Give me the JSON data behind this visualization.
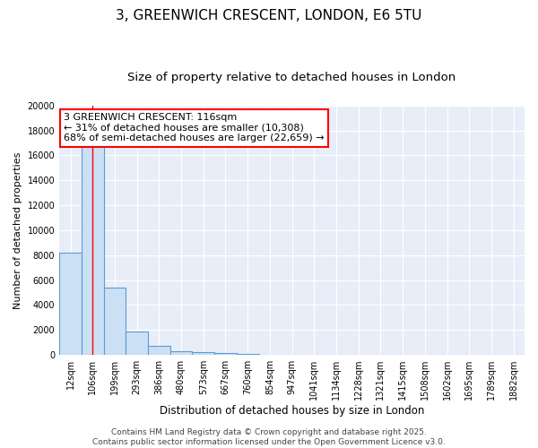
{
  "title_line1": "3, GREENWICH CRESCENT, LONDON, E6 5TU",
  "title_line2": "Size of property relative to detached houses in London",
  "xlabel": "Distribution of detached houses by size in London",
  "ylabel": "Number of detached properties",
  "bar_color": "#cce0f5",
  "bar_edge_color": "#5b9bd5",
  "bar_edge_width": 0.8,
  "vline_color": "red",
  "vline_x": 1.0,
  "categories": [
    "12sqm",
    "106sqm",
    "199sqm",
    "293sqm",
    "386sqm",
    "480sqm",
    "573sqm",
    "667sqm",
    "760sqm",
    "854sqm",
    "947sqm",
    "1041sqm",
    "1134sqm",
    "1228sqm",
    "1321sqm",
    "1415sqm",
    "1508sqm",
    "1602sqm",
    "1695sqm",
    "1789sqm",
    "1882sqm"
  ],
  "values": [
    8200,
    16700,
    5400,
    1850,
    750,
    300,
    200,
    150,
    100,
    0,
    0,
    0,
    0,
    0,
    0,
    0,
    0,
    0,
    0,
    0,
    0
  ],
  "ylim": [
    0,
    20000
  ],
  "yticks": [
    0,
    2000,
    4000,
    6000,
    8000,
    10000,
    12000,
    14000,
    16000,
    18000,
    20000
  ],
  "annotation_text": "3 GREENWICH CRESCENT: 116sqm\n← 31% of detached houses are smaller (10,308)\n68% of semi-detached houses are larger (22,659) →",
  "annotation_fontsize": 8,
  "annotation_box_color": "white",
  "annotation_border_color": "red",
  "footer_text": "Contains HM Land Registry data © Crown copyright and database right 2025.\nContains public sector information licensed under the Open Government Licence v3.0.",
  "fig_background": "#ffffff",
  "plot_background": "#e8eef8",
  "grid_color": "white",
  "title_fontsize": 11,
  "subtitle_fontsize": 9.5,
  "xlabel_fontsize": 8.5,
  "ylabel_fontsize": 8,
  "tick_fontsize": 7,
  "footer_fontsize": 6.5
}
